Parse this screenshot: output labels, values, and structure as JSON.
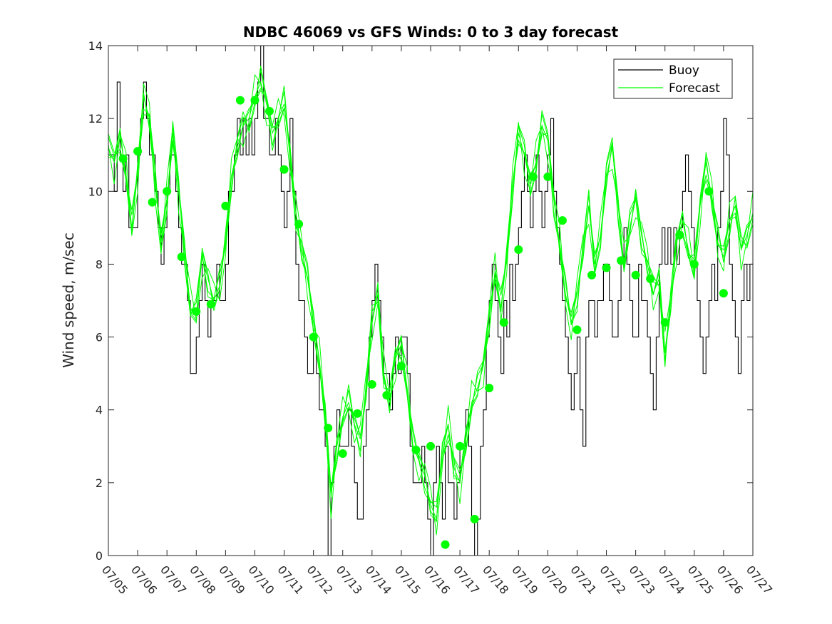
{
  "chart_data": {
    "type": "line",
    "title": "NDBC 46069 vs GFS Winds: 0 to 3 day forecast",
    "xlabel": "",
    "ylabel": "Wind speed, m/sec",
    "x_unit": "day of July (07/05 = 5)",
    "xlim": [
      5,
      27
    ],
    "ylim": [
      0,
      14
    ],
    "yticks": [
      0,
      2,
      4,
      6,
      8,
      10,
      12,
      14
    ],
    "xticks": [
      {
        "v": 5,
        "label": "07/05"
      },
      {
        "v": 6,
        "label": "07/06"
      },
      {
        "v": 7,
        "label": "07/07"
      },
      {
        "v": 8,
        "label": "07/08"
      },
      {
        "v": 9,
        "label": "07/09"
      },
      {
        "v": 10,
        "label": "07/10"
      },
      {
        "v": 11,
        "label": "07/11"
      },
      {
        "v": 12,
        "label": "07/12"
      },
      {
        "v": 13,
        "label": "07/13"
      },
      {
        "v": 14,
        "label": "07/14"
      },
      {
        "v": 15,
        "label": "07/15"
      },
      {
        "v": 16,
        "label": "07/16"
      },
      {
        "v": 17,
        "label": "07/17"
      },
      {
        "v": 18,
        "label": "07/18"
      },
      {
        "v": 19,
        "label": "07/19"
      },
      {
        "v": 20,
        "label": "07/20"
      },
      {
        "v": 21,
        "label": "07/21"
      },
      {
        "v": 22,
        "label": "07/22"
      },
      {
        "v": 23,
        "label": "07/23"
      },
      {
        "v": 24,
        "label": "07/24"
      },
      {
        "v": 25,
        "label": "07/25"
      },
      {
        "v": 26,
        "label": "07/26"
      },
      {
        "v": 27,
        "label": "07/27"
      }
    ],
    "legend": {
      "placement": "top-right",
      "entries": [
        "Buoy",
        "Forecast"
      ]
    },
    "grid": false,
    "colors": {
      "buoy": "#000000",
      "forecast": "#00ff00",
      "axes": "#262626"
    },
    "series": [
      {
        "name": "Buoy",
        "color": "#000000",
        "x": [
          5.0,
          5.1,
          5.2,
          5.3,
          5.4,
          5.5,
          5.6,
          5.7,
          5.8,
          5.9,
          6.0,
          6.1,
          6.2,
          6.3,
          6.4,
          6.5,
          6.6,
          6.7,
          6.8,
          6.9,
          7.0,
          7.1,
          7.2,
          7.3,
          7.4,
          7.5,
          7.6,
          7.7,
          7.8,
          7.9,
          8.0,
          8.1,
          8.2,
          8.3,
          8.4,
          8.5,
          8.6,
          8.7,
          8.8,
          8.9,
          9.0,
          9.1,
          9.2,
          9.3,
          9.4,
          9.5,
          9.6,
          9.7,
          9.8,
          9.9,
          10.0,
          10.1,
          10.2,
          10.3,
          10.4,
          10.5,
          10.6,
          10.7,
          10.8,
          10.9,
          11.0,
          11.1,
          11.2,
          11.3,
          11.4,
          11.5,
          11.6,
          11.7,
          11.8,
          11.9,
          12.0,
          12.1,
          12.2,
          12.3,
          12.4,
          12.5,
          12.6,
          12.7,
          12.8,
          12.9,
          13.0,
          13.1,
          13.2,
          13.3,
          13.4,
          13.5,
          13.6,
          13.7,
          13.8,
          13.9,
          14.0,
          14.1,
          14.2,
          14.3,
          14.4,
          14.5,
          14.6,
          14.7,
          14.8,
          14.9,
          15.0,
          15.1,
          15.2,
          15.3,
          15.4,
          15.5,
          15.6,
          15.7,
          15.8,
          15.9,
          16.0,
          16.1,
          16.2,
          16.3,
          16.4,
          16.5,
          16.6,
          16.7,
          16.8,
          16.9,
          17.0,
          17.1,
          17.2,
          17.3,
          17.4,
          17.5,
          17.6,
          17.7,
          17.8,
          17.9,
          18.0,
          18.1,
          18.2,
          18.3,
          18.4,
          18.5,
          18.6,
          18.7,
          18.8,
          18.9,
          19.0,
          19.1,
          19.2,
          19.3,
          19.4,
          19.5,
          19.6,
          19.7,
          19.8,
          19.9,
          20.0,
          20.1,
          20.2,
          20.3,
          20.4,
          20.5,
          20.6,
          20.7,
          20.8,
          20.9,
          21.0,
          21.1,
          21.2,
          21.3,
          21.4,
          21.5,
          21.6,
          21.7,
          21.8,
          21.9,
          22.0,
          22.1,
          22.2,
          22.3,
          22.4,
          22.5,
          22.6,
          22.7,
          22.8,
          22.9,
          23.0,
          23.1,
          23.2,
          23.3,
          23.4,
          23.5,
          23.6,
          23.7,
          23.8,
          23.9,
          24.0,
          24.1,
          24.2,
          24.3,
          24.4,
          24.5,
          24.6,
          24.7,
          24.8,
          24.9,
          25.0,
          25.1,
          25.2,
          25.3,
          25.4,
          25.5,
          25.6,
          25.7,
          25.8,
          25.9,
          26.0,
          26.1,
          26.2,
          26.3,
          26.4,
          26.5,
          26.6,
          26.7,
          26.8,
          26.9,
          27.0
        ],
        "y": [
          11,
          11,
          10,
          13,
          11,
          10,
          11,
          9,
          9,
          9,
          11,
          12,
          13,
          12,
          11,
          11,
          10,
          9,
          8,
          9,
          10,
          11,
          11,
          10,
          9,
          8,
          8,
          7,
          5,
          5,
          6,
          7,
          8,
          7,
          6,
          7,
          7,
          8,
          7,
          7,
          8,
          10,
          10,
          11,
          12,
          11,
          12,
          11,
          12,
          11,
          12,
          13,
          14,
          12,
          12,
          11,
          11,
          12,
          11,
          10,
          9,
          10,
          12,
          10,
          8,
          7,
          7,
          6,
          5,
          5,
          6,
          5,
          4,
          4,
          3,
          0,
          2,
          3,
          4,
          3,
          3,
          3,
          4,
          3,
          2,
          1,
          1,
          3,
          4,
          6,
          7,
          8,
          7,
          6,
          5,
          5,
          4,
          5,
          6,
          5,
          6,
          6,
          5,
          3,
          2,
          2,
          2,
          3,
          2,
          1,
          0,
          2,
          3,
          2,
          1,
          3,
          2,
          2,
          1,
          2,
          3,
          3,
          4,
          3,
          1,
          0,
          1,
          3,
          4,
          6,
          7,
          8,
          7,
          6,
          5,
          7,
          6,
          8,
          7,
          8,
          9,
          10,
          11,
          10,
          9,
          10,
          11,
          10,
          9,
          10,
          11,
          12,
          10,
          9,
          8,
          7,
          6,
          5,
          4,
          5,
          6,
          4,
          3,
          6,
          7,
          7,
          6,
          7,
          7,
          8,
          8,
          7,
          6,
          6,
          7,
          8,
          9,
          8,
          7,
          6,
          6,
          8,
          7,
          7,
          6,
          5,
          4,
          6,
          8,
          9,
          8,
          9,
          8,
          9,
          8,
          9,
          10,
          11,
          10,
          9,
          8,
          7,
          6,
          5,
          6,
          7,
          8,
          7,
          9,
          10,
          12,
          11,
          8,
          7,
          6,
          5,
          7,
          8,
          7,
          8,
          8
        ]
      },
      {
        "name": "Forecast",
        "color": "#00ff00",
        "x": [
          5.0,
          5.2,
          5.4,
          5.6,
          5.8,
          6.0,
          6.2,
          6.4,
          6.6,
          6.8,
          7.0,
          7.2,
          7.4,
          7.6,
          7.8,
          8.0,
          8.2,
          8.4,
          8.6,
          8.8,
          9.0,
          9.2,
          9.4,
          9.6,
          9.8,
          10.0,
          10.2,
          10.4,
          10.6,
          10.8,
          11.0,
          11.2,
          11.4,
          11.6,
          11.8,
          12.0,
          12.2,
          12.4,
          12.6,
          12.8,
          13.0,
          13.2,
          13.4,
          13.6,
          13.8,
          14.0,
          14.2,
          14.4,
          14.6,
          14.8,
          15.0,
          15.2,
          15.4,
          15.6,
          15.8,
          16.0,
          16.2,
          16.4,
          16.6,
          16.8,
          17.0,
          17.2,
          17.4,
          17.6,
          17.8,
          18.0,
          18.2,
          18.4,
          18.6,
          18.8,
          19.0,
          19.2,
          19.4,
          19.6,
          19.8,
          20.0,
          20.2,
          20.4,
          20.6,
          20.8,
          21.0,
          21.2,
          21.4,
          21.6,
          21.8,
          22.0,
          22.2,
          22.4,
          22.6,
          22.8,
          23.0,
          23.2,
          23.4,
          23.6,
          23.8,
          24.0,
          24.2,
          24.4,
          24.6,
          24.8,
          25.0,
          25.2,
          25.4,
          25.6,
          25.8,
          26.0,
          26.2,
          26.4,
          26.6,
          26.8,
          27.0
        ],
        "y": [
          11.2,
          10.8,
          11.5,
          10.5,
          9.0,
          10.5,
          12.6,
          12.0,
          10.2,
          8.6,
          9.8,
          11.6,
          10.0,
          8.4,
          6.8,
          6.6,
          8.2,
          7.6,
          7.0,
          7.4,
          8.6,
          10.4,
          11.2,
          11.8,
          12.0,
          12.6,
          13.0,
          12.4,
          11.6,
          12.0,
          12.4,
          11.0,
          9.4,
          8.4,
          7.6,
          6.4,
          5.4,
          3.8,
          1.6,
          3.0,
          3.8,
          4.2,
          3.6,
          3.2,
          4.6,
          6.4,
          7.2,
          5.0,
          4.2,
          5.4,
          5.8,
          4.6,
          3.0,
          2.6,
          2.2,
          1.4,
          1.0,
          2.8,
          3.6,
          2.4,
          2.0,
          3.2,
          4.2,
          4.6,
          5.2,
          6.6,
          7.8,
          6.8,
          8.2,
          10.2,
          11.6,
          11.0,
          10.2,
          10.8,
          11.8,
          11.4,
          9.8,
          8.6,
          7.2,
          6.4,
          7.2,
          8.4,
          9.6,
          8.0,
          8.8,
          10.4,
          11.2,
          9.6,
          8.0,
          9.0,
          9.8,
          8.8,
          8.0,
          7.2,
          7.6,
          5.6,
          7.0,
          8.6,
          9.2,
          8.4,
          7.8,
          9.6,
          10.8,
          9.8,
          8.6,
          8.2,
          9.2,
          9.6,
          8.4,
          8.8,
          9.4
        ]
      },
      {
        "name": "",
        "type": "scatter",
        "color": "#00ff00",
        "x": [
          5.5,
          6.0,
          6.5,
          7.0,
          7.5,
          8.0,
          8.5,
          9.0,
          9.5,
          10.0,
          10.5,
          11.0,
          11.5,
          12.0,
          12.5,
          13.0,
          13.5,
          14.0,
          14.5,
          15.0,
          15.5,
          16.0,
          16.5,
          17.0,
          17.5,
          18.0,
          18.5,
          19.0,
          19.5,
          20.0,
          20.5,
          21.0,
          21.5,
          22.0,
          22.5,
          23.0,
          23.5,
          24.0,
          24.5,
          25.0,
          25.5,
          26.0
        ],
        "y": [
          10.9,
          11.1,
          9.7,
          10.0,
          8.2,
          6.7,
          6.9,
          9.6,
          12.5,
          12.5,
          12.2,
          10.6,
          9.1,
          6.0,
          3.5,
          2.8,
          3.9,
          4.7,
          4.4,
          5.2,
          2.9,
          3.0,
          0.3,
          3.0,
          1.0,
          4.6,
          6.4,
          8.4,
          10.4,
          10.4,
          9.2,
          6.2,
          7.7,
          7.9,
          8.1,
          7.7,
          7.6,
          6.4,
          8.8,
          8.0,
          10.0,
          7.2
        ]
      }
    ]
  }
}
